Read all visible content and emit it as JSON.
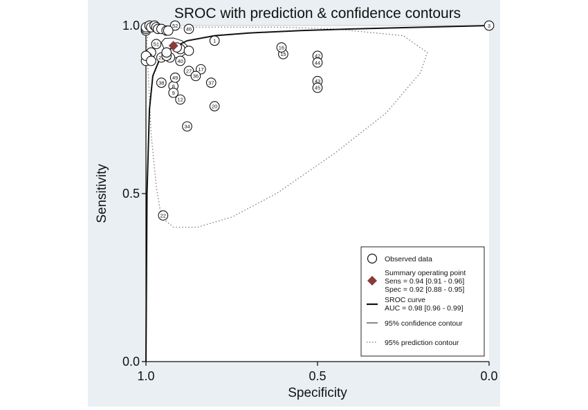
{
  "chart_data": {
    "type": "scatter",
    "title": "SROC with prediction & confidence contours",
    "xlabel": "Specificity",
    "ylabel": "Sensitivity",
    "xlim": [
      1.0,
      0.0
    ],
    "ylim": [
      0.0,
      1.0
    ],
    "x_reversed": true,
    "xticks": [
      "1.0",
      "0.5",
      "0.0"
    ],
    "yticks": [
      "0.0",
      "0.5",
      "1.0"
    ],
    "xtick_values": [
      1.0,
      0.5,
      0.0
    ],
    "ytick_values": [
      0.0,
      0.5,
      1.0
    ],
    "legend_position": "bottom-right",
    "colors": {
      "background_band": "#e9eff3",
      "summary_point": "#8b3a3a",
      "lines": "#111111",
      "prediction_contour": "#777777"
    },
    "observed": [
      {
        "label": "1",
        "spec": 0.8,
        "sens": 0.955
      },
      {
        "label": "2",
        "spec": 0.93,
        "sens": 0.905
      },
      {
        "label": "3",
        "spec": 0.0,
        "sens": 1.0
      },
      {
        "label": "7",
        "spec": 0.9,
        "sens": 0.93
      },
      {
        "label": "8",
        "spec": 0.92,
        "sens": 0.82
      },
      {
        "label": "9",
        "spec": 0.92,
        "sens": 0.8
      },
      {
        "label": "12",
        "spec": 0.9,
        "sens": 0.78
      },
      {
        "label": "15",
        "spec": 0.6,
        "sens": 0.915
      },
      {
        "label": "16",
        "spec": 0.605,
        "sens": 0.935
      },
      {
        "label": "17",
        "spec": 0.84,
        "sens": 0.87
      },
      {
        "label": "20",
        "spec": 0.8,
        "sens": 0.76
      },
      {
        "label": "22",
        "spec": 0.95,
        "sens": 0.435
      },
      {
        "label": "27",
        "spec": 0.875,
        "sens": 0.865
      },
      {
        "label": "29",
        "spec": 0.955,
        "sens": 0.905
      },
      {
        "label": "34",
        "spec": 0.88,
        "sens": 0.7
      },
      {
        "label": "36",
        "spec": 0.855,
        "sens": 0.85
      },
      {
        "label": "37",
        "spec": 0.81,
        "sens": 0.83
      },
      {
        "label": "38",
        "spec": 0.955,
        "sens": 0.83
      },
      {
        "label": "40",
        "spec": 0.9,
        "sens": 0.895
      },
      {
        "label": "42",
        "spec": 0.5,
        "sens": 0.91
      },
      {
        "label": "43",
        "spec": 0.5,
        "sens": 0.835
      },
      {
        "label": "44",
        "spec": 0.5,
        "sens": 0.89
      },
      {
        "label": "45",
        "spec": 0.5,
        "sens": 0.815
      },
      {
        "label": "46",
        "spec": 0.875,
        "sens": 0.99
      },
      {
        "label": "49",
        "spec": 0.915,
        "sens": 0.845
      },
      {
        "label": "51",
        "spec": 0.97,
        "sens": 0.945
      },
      {
        "label": "52",
        "spec": 0.915,
        "sens": 1.0
      },
      {
        "label": "",
        "spec": 1.0,
        "sens": 0.985
      },
      {
        "label": "",
        "spec": 1.0,
        "sens": 0.99
      },
      {
        "label": "",
        "spec": 1.0,
        "sens": 0.995
      },
      {
        "label": "",
        "spec": 0.99,
        "sens": 1.0
      },
      {
        "label": "",
        "spec": 0.985,
        "sens": 0.995
      },
      {
        "label": "",
        "spec": 0.975,
        "sens": 1.0
      },
      {
        "label": "",
        "spec": 0.97,
        "sens": 0.995
      },
      {
        "label": "",
        "spec": 0.965,
        "sens": 0.99
      },
      {
        "label": "",
        "spec": 0.955,
        "sens": 0.99
      },
      {
        "label": "",
        "spec": 0.94,
        "sens": 0.985
      },
      {
        "label": "",
        "spec": 0.935,
        "sens": 0.985
      },
      {
        "label": "",
        "spec": 0.985,
        "sens": 0.92
      },
      {
        "label": "",
        "spec": 0.995,
        "sens": 0.905
      },
      {
        "label": "",
        "spec": 1.0,
        "sens": 0.895
      },
      {
        "label": "",
        "spec": 1.0,
        "sens": 0.91
      },
      {
        "label": "",
        "spec": 0.985,
        "sens": 0.895
      },
      {
        "label": "",
        "spec": 0.94,
        "sens": 0.91
      },
      {
        "label": "",
        "spec": 0.875,
        "sens": 0.925
      },
      {
        "label": "",
        "spec": 0.91,
        "sens": 0.935
      },
      {
        "label": "",
        "spec": 0.94,
        "sens": 0.92
      }
    ],
    "summary": {
      "spec": 0.92,
      "sens": 0.94,
      "spec_ci": [
        0.88,
        0.95
      ],
      "sens_ci": [
        0.91,
        0.96
      ]
    },
    "sroc_curve": [
      [
        1.0,
        0.0
      ],
      [
        0.997,
        0.5
      ],
      [
        0.99,
        0.75
      ],
      [
        0.98,
        0.85
      ],
      [
        0.96,
        0.9
      ],
      [
        0.93,
        0.93
      ],
      [
        0.88,
        0.955
      ],
      [
        0.8,
        0.97
      ],
      [
        0.7,
        0.978
      ],
      [
        0.55,
        0.985
      ],
      [
        0.4,
        0.99
      ],
      [
        0.2,
        0.995
      ],
      [
        0.0,
        1.0
      ]
    ],
    "confidence_contour": [
      [
        0.88,
        0.92
      ],
      [
        0.9,
        0.905
      ],
      [
        0.925,
        0.905
      ],
      [
        0.945,
        0.925
      ],
      [
        0.955,
        0.95
      ],
      [
        0.945,
        0.962
      ],
      [
        0.92,
        0.963
      ],
      [
        0.895,
        0.955
      ],
      [
        0.88,
        0.94
      ]
    ],
    "prediction_contour": [
      [
        0.99,
        0.99
      ],
      [
        0.85,
        0.995
      ],
      [
        0.6,
        0.995
      ],
      [
        0.45,
        0.99
      ],
      [
        0.25,
        0.97
      ],
      [
        0.18,
        0.92
      ],
      [
        0.2,
        0.86
      ],
      [
        0.3,
        0.74
      ],
      [
        0.45,
        0.62
      ],
      [
        0.62,
        0.5
      ],
      [
        0.75,
        0.43
      ],
      [
        0.85,
        0.4
      ],
      [
        0.92,
        0.4
      ],
      [
        0.955,
        0.43
      ],
      [
        0.97,
        0.52
      ],
      [
        0.985,
        0.68
      ],
      [
        0.993,
        0.85
      ],
      [
        0.998,
        0.95
      ],
      [
        0.99,
        0.99
      ]
    ],
    "legend": {
      "observed": "Observed data",
      "summary_title": "Summary operating point",
      "summary_sens": "Sens = 0.94 [0.91 - 0.96]",
      "summary_spec": "Spec = 0.92 [0.88 - 0.95]",
      "sroc_title": "SROC curve",
      "sroc_auc": "AUC = 0.98 [0.96 - 0.99]",
      "confidence": "95% confidence contour",
      "prediction": "95% prediction contour"
    }
  }
}
